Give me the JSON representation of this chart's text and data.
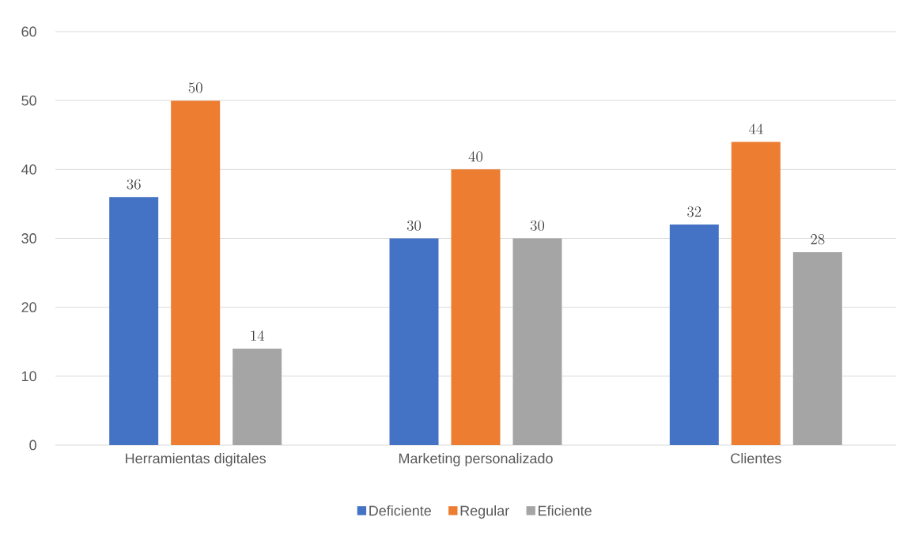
{
  "chart_data": {
    "type": "bar",
    "categories": [
      "Herramientas digitales",
      "Marketing personalizado",
      "Clientes"
    ],
    "series": [
      {
        "name": "Deficiente",
        "color": "#4472c4",
        "values": [
          36,
          30,
          32
        ]
      },
      {
        "name": "Regular",
        "color": "#ed7d31",
        "values": [
          50,
          40,
          44
        ]
      },
      {
        "name": "Eficiente",
        "color": "#a5a5a5",
        "values": [
          14,
          30,
          28
        ]
      }
    ],
    "ylim": [
      0,
      60
    ],
    "yticks": [
      0,
      10,
      20,
      30,
      40,
      50,
      60
    ],
    "grid": "y",
    "legend": "bottom",
    "data_labels": true
  }
}
